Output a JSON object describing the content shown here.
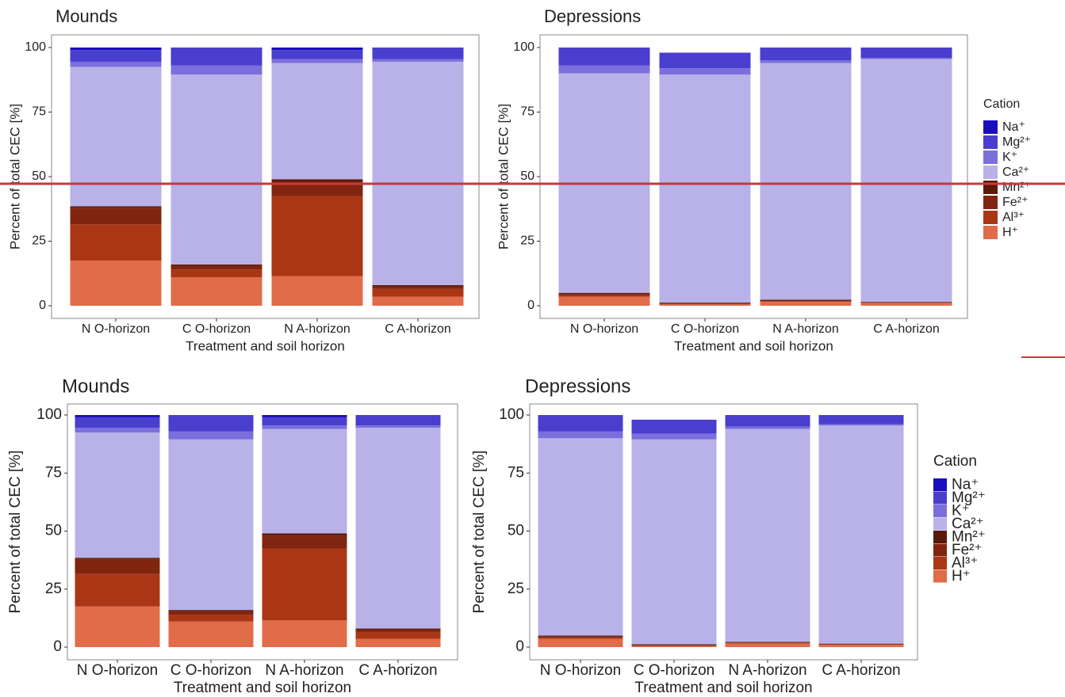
{
  "chart_data": [
    {
      "type": "bar",
      "stacked": true,
      "title": "Mounds",
      "x_label": "Treatment and soil horizon",
      "y_label": "Percent of total CEC [%]",
      "categories": [
        "N O-horizon",
        "C O-horizon",
        "N A-horizon",
        "C A-horizon"
      ],
      "ylim": [
        0,
        100
      ],
      "yticks": [
        0,
        25,
        50,
        75,
        100
      ],
      "series": [
        {
          "name": "Na⁺",
          "color": "#1a0dbf",
          "values": [
            1,
            0,
            1,
            0
          ]
        },
        {
          "name": "Mg²⁺",
          "color": "#4a3ecf",
          "values": [
            4.5,
            7,
            3.5,
            4.5
          ]
        },
        {
          "name": "K⁺",
          "color": "#7b6fdc",
          "values": [
            2,
            3.5,
            1.5,
            1
          ]
        },
        {
          "name": "Ca²⁺",
          "color": "#b8b2e8",
          "values": [
            54,
            73.5,
            45,
            86.5
          ]
        },
        {
          "name": "Mn²⁺",
          "color": "#5a1a0a",
          "values": [
            0.5,
            0.5,
            1,
            0.5
          ]
        },
        {
          "name": "Fe²⁺",
          "color": "#80250f",
          "values": [
            6.5,
            1.5,
            5.5,
            1
          ]
        },
        {
          "name": "Al³⁺",
          "color": "#ab3616",
          "values": [
            14,
            3,
            31,
            3
          ]
        },
        {
          "name": "H⁺",
          "color": "#e06c4a",
          "values": [
            17.5,
            11,
            11.5,
            3.5
          ]
        }
      ]
    },
    {
      "type": "bar",
      "stacked": true,
      "title": "Depressions",
      "x_label": "Treatment and soil horizon",
      "y_label": "Percent of total CEC [%]",
      "categories": [
        "N O-horizon",
        "C O-horizon",
        "N A-horizon",
        "C A-horizon"
      ],
      "ylim": [
        0,
        100
      ],
      "yticks": [
        0,
        25,
        50,
        75,
        100
      ],
      "legend_title": "Cation",
      "legend": "right",
      "series": [
        {
          "name": "Na⁺",
          "color": "#1a0dbf",
          "values": [
            0,
            0,
            0,
            0
          ]
        },
        {
          "name": "Mg²⁺",
          "color": "#4a3ecf",
          "values": [
            7,
            6,
            5,
            4
          ]
        },
        {
          "name": "K⁺",
          "color": "#7b6fdc",
          "values": [
            3,
            2.5,
            1,
            0.5
          ]
        },
        {
          "name": "Ca²⁺",
          "color": "#b8b2e8",
          "values": [
            85,
            88.3,
            91.7,
            94
          ]
        },
        {
          "name": "Mn²⁺",
          "color": "#5a1a0a",
          "values": [
            0.5,
            0.3,
            0.3,
            0.1
          ]
        },
        {
          "name": "Fe²⁺",
          "color": "#80250f",
          "values": [
            0.5,
            0.2,
            0.2,
            0.2
          ]
        },
        {
          "name": "Al³⁺",
          "color": "#ab3616",
          "values": [
            0.5,
            0.2,
            0.3,
            0.2
          ]
        },
        {
          "name": "H⁺",
          "color": "#e06c4a",
          "values": [
            3.5,
            0.5,
            1.5,
            1
          ]
        }
      ]
    },
    {
      "type": "bar",
      "stacked": true,
      "title": "Mounds",
      "x_label": "Treatment and soil horizon",
      "y_label": "Percent of total CEC [%]",
      "categories": [
        "N O-horizon",
        "C O-horizon",
        "N A-horizon",
        "C A-horizon"
      ],
      "ylim": [
        0,
        100
      ],
      "yticks": [
        0,
        25,
        50,
        75,
        100
      ],
      "series": [
        {
          "name": "Na⁺",
          "color": "#1a0dbf",
          "values": [
            1,
            0,
            1,
            0
          ]
        },
        {
          "name": "Mg²⁺",
          "color": "#4a3ecf",
          "values": [
            4.5,
            7,
            3.5,
            4.5
          ]
        },
        {
          "name": "K⁺",
          "color": "#7b6fdc",
          "values": [
            2,
            3.5,
            1.5,
            1
          ]
        },
        {
          "name": "Ca²⁺",
          "color": "#b8b2e8",
          "values": [
            54,
            73.5,
            45,
            86.5
          ]
        },
        {
          "name": "Mn²⁺",
          "color": "#5a1a0a",
          "values": [
            0.5,
            0.5,
            1,
            0.5
          ]
        },
        {
          "name": "Fe²⁺",
          "color": "#80250f",
          "values": [
            6.5,
            1.5,
            5.5,
            1
          ]
        },
        {
          "name": "Al³⁺",
          "color": "#ab3616",
          "values": [
            14,
            3,
            31,
            3
          ]
        },
        {
          "name": "H⁺",
          "color": "#e06c4a",
          "values": [
            17.5,
            11,
            11.5,
            3.5
          ]
        }
      ]
    },
    {
      "type": "bar",
      "stacked": true,
      "title": "Depressions",
      "x_label": "Treatment and soil horizon",
      "y_label": "Percent of total CEC [%]",
      "categories": [
        "N O-horizon",
        "C O-horizon",
        "N A-horizon",
        "C A-horizon"
      ],
      "ylim": [
        0,
        100
      ],
      "yticks": [
        0,
        25,
        50,
        75,
        100
      ],
      "legend_title": "Cation",
      "legend": "right",
      "series": [
        {
          "name": "Na⁺",
          "color": "#1a0dbf",
          "values": [
            0,
            0,
            0,
            0
          ]
        },
        {
          "name": "Mg²⁺",
          "color": "#4a3ecf",
          "values": [
            7,
            6,
            5,
            4
          ]
        },
        {
          "name": "K⁺",
          "color": "#7b6fdc",
          "values": [
            3,
            2.5,
            1,
            0.5
          ]
        },
        {
          "name": "Ca²⁺",
          "color": "#b8b2e8",
          "values": [
            85,
            88.3,
            91.7,
            94
          ]
        },
        {
          "name": "Mn²⁺",
          "color": "#5a1a0a",
          "values": [
            0.5,
            0.3,
            0.3,
            0.1
          ]
        },
        {
          "name": "Fe²⁺",
          "color": "#80250f",
          "values": [
            0.5,
            0.2,
            0.2,
            0.2
          ]
        },
        {
          "name": "Al³⁺",
          "color": "#ab3616",
          "values": [
            0.5,
            0.2,
            0.3,
            0.2
          ]
        },
        {
          "name": "H⁺",
          "color": "#e06c4a",
          "values": [
            3.5,
            0.5,
            1.5,
            1
          ]
        }
      ]
    }
  ]
}
